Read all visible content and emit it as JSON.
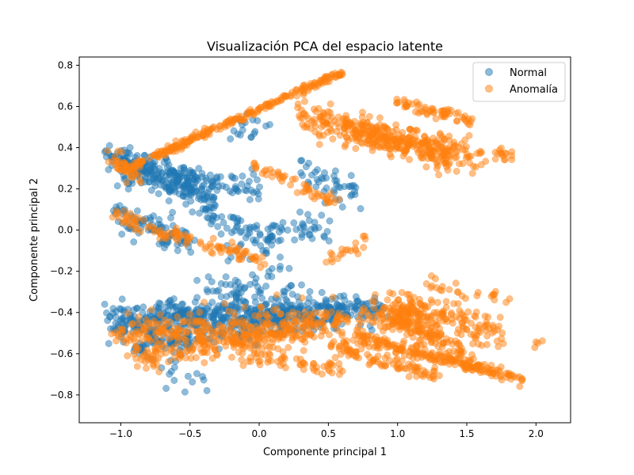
{
  "chart_data": {
    "type": "scatter",
    "title": "Visualización PCA del espacio latente",
    "xlabel": "Componente principal 1",
    "ylabel": "Componente principal 2",
    "xlim": [
      -1.3,
      2.25
    ],
    "ylim": [
      -0.935,
      0.84
    ],
    "xticks": [
      -1.0,
      -0.5,
      0.0,
      0.5,
      1.0,
      1.5,
      2.0
    ],
    "xtick_labels": [
      "−1.0",
      "−0.5",
      "0.0",
      "0.5",
      "1.0",
      "1.5",
      "2.0"
    ],
    "yticks": [
      -0.8,
      -0.6,
      -0.4,
      -0.2,
      0.0,
      0.2,
      0.4,
      0.6,
      0.8
    ],
    "ytick_labels": [
      "−0.8",
      "−0.6",
      "−0.4",
      "−0.2",
      "0.0",
      "0.2",
      "0.4",
      "0.6",
      "0.8"
    ],
    "grid": false,
    "legend_position": "top-right",
    "marker_alpha": 0.5,
    "series": [
      {
        "name": "Normal",
        "color": "#1f77b4",
        "clusters": [
          {
            "x": [
              -1.12,
              -0.45
            ],
            "y": [
              0.38,
              0.22
            ],
            "n": 140,
            "spread": 0.035
          },
          {
            "x": [
              -1.0,
              -0.3
            ],
            "y": [
              0.3,
              0.12
            ],
            "n": 110,
            "spread": 0.035
          },
          {
            "x": [
              -0.6,
              0.0
            ],
            "y": [
              0.26,
              0.2
            ],
            "n": 70,
            "spread": 0.03
          },
          {
            "x": [
              -1.05,
              -0.5
            ],
            "y": [
              0.08,
              -0.06
            ],
            "n": 90,
            "spread": 0.035
          },
          {
            "x": [
              -0.35,
              0.1
            ],
            "y": [
              0.05,
              -0.05
            ],
            "n": 60,
            "spread": 0.04
          },
          {
            "x": [
              0.1,
              0.5
            ],
            "y": [
              0.0,
              0.02
            ],
            "n": 35,
            "spread": 0.04
          },
          {
            "x": [
              0.3,
              0.7
            ],
            "y": [
              0.3,
              0.18
            ],
            "n": 45,
            "spread": 0.04
          },
          {
            "x": [
              -1.1,
              0.9
            ],
            "y": [
              -0.42,
              -0.38
            ],
            "n": 320,
            "spread": 0.035
          },
          {
            "x": [
              -1.05,
              0.6
            ],
            "y": [
              -0.48,
              -0.4
            ],
            "n": 240,
            "spread": 0.035
          },
          {
            "x": [
              -0.9,
              0.2
            ],
            "y": [
              -0.58,
              -0.45
            ],
            "n": 140,
            "spread": 0.035
          },
          {
            "x": [
              -0.4,
              0.3
            ],
            "y": [
              -0.3,
              -0.3
            ],
            "n": 50,
            "spread": 0.035
          },
          {
            "x": [
              -0.2,
              0.1
            ],
            "y": [
              0.48,
              0.5
            ],
            "n": 18,
            "spread": 0.03
          },
          {
            "x": [
              -0.75,
              -0.35
            ],
            "y": [
              -0.66,
              -0.78
            ],
            "n": 14,
            "spread": 0.04
          },
          {
            "x": [
              -0.3,
              0.25
            ],
            "y": [
              -0.12,
              -0.22
            ],
            "n": 20,
            "spread": 0.05
          }
        ]
      },
      {
        "name": "Anomalía",
        "color": "#ff7f0e",
        "clusters": [
          {
            "x": [
              -0.95,
              0.6
            ],
            "y": [
              0.3,
              0.77
            ],
            "n": 230,
            "spread": 0.01
          },
          {
            "x": [
              -1.08,
              -0.85
            ],
            "y": [
              0.36,
              0.24
            ],
            "n": 40,
            "spread": 0.02
          },
          {
            "x": [
              0.3,
              1.4
            ],
            "y": [
              0.55,
              0.35
            ],
            "n": 220,
            "spread": 0.04
          },
          {
            "x": [
              0.6,
              1.6
            ],
            "y": [
              0.5,
              0.35
            ],
            "n": 180,
            "spread": 0.04
          },
          {
            "x": [
              1.0,
              1.55
            ],
            "y": [
              0.62,
              0.53
            ],
            "n": 60,
            "spread": 0.015
          },
          {
            "x": [
              1.7,
              1.85
            ],
            "y": [
              0.38,
              0.35
            ],
            "n": 15,
            "spread": 0.015
          },
          {
            "x": [
              -0.05,
              0.6
            ],
            "y": [
              0.32,
              0.12
            ],
            "n": 50,
            "spread": 0.015
          },
          {
            "x": [
              -1.05,
              -0.5
            ],
            "y": [
              0.07,
              -0.05
            ],
            "n": 60,
            "spread": 0.02
          },
          {
            "x": [
              -0.45,
              0.05
            ],
            "y": [
              -0.05,
              -0.15
            ],
            "n": 45,
            "spread": 0.015
          },
          {
            "x": [
              -1.05,
              1.2
            ],
            "y": [
              -0.5,
              -0.4
            ],
            "n": 300,
            "spread": 0.04
          },
          {
            "x": [
              -0.9,
              0.4
            ],
            "y": [
              -0.62,
              -0.48
            ],
            "n": 220,
            "spread": 0.035
          },
          {
            "x": [
              0.9,
              1.75
            ],
            "y": [
              -0.36,
              -0.5
            ],
            "n": 150,
            "spread": 0.04
          },
          {
            "x": [
              0.7,
              1.9
            ],
            "y": [
              -0.52,
              -0.72
            ],
            "n": 200,
            "spread": 0.015
          },
          {
            "x": [
              0.9,
              1.6
            ],
            "y": [
              -0.42,
              -0.62
            ],
            "n": 120,
            "spread": 0.025
          },
          {
            "x": [
              0.5,
              1.3
            ],
            "y": [
              -0.55,
              -0.72
            ],
            "n": 90,
            "spread": 0.02
          },
          {
            "x": [
              -0.2,
              0.6
            ],
            "y": [
              -0.6,
              -0.68
            ],
            "n": 60,
            "spread": 0.03
          },
          {
            "x": [
              1.2,
              1.85
            ],
            "y": [
              -0.25,
              -0.36
            ],
            "n": 25,
            "spread": 0.02
          },
          {
            "x": [
              2.0,
              2.1
            ],
            "y": [
              -0.55,
              -0.52
            ],
            "n": 4,
            "spread": 0.01
          },
          {
            "x": [
              0.5,
              0.8
            ],
            "y": [
              -0.15,
              -0.05
            ],
            "n": 20,
            "spread": 0.02
          }
        ]
      }
    ]
  }
}
